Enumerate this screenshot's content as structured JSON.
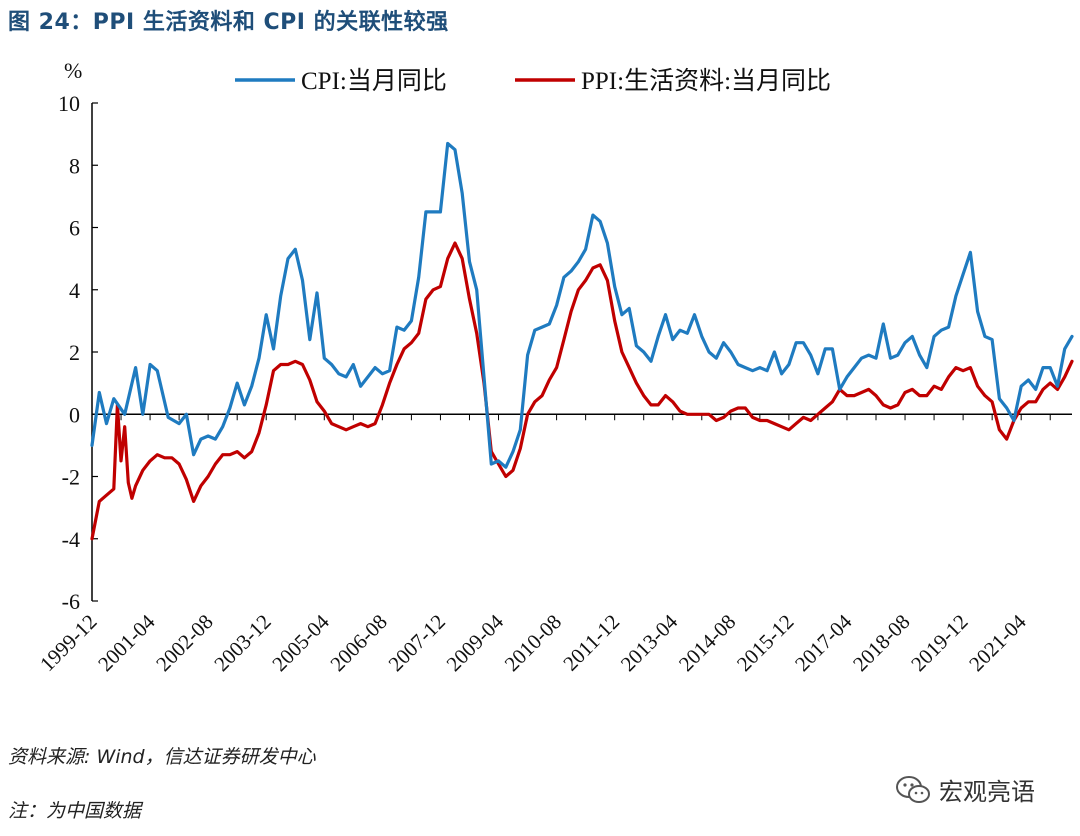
{
  "title": "图 24：PPI 生活资料和 CPI 的关联性较强",
  "source": "资料来源: Wind，信达证券研发中心",
  "note": "注：为中国数据",
  "watermark": "宏观亮语",
  "watermark_icon": "wechat-icon",
  "colors": {
    "cpi": "#1f7bc0",
    "ppi": "#c00000",
    "title": "#1f4e79"
  },
  "chart_data": {
    "type": "line",
    "y_unit_label": "%",
    "ylim": [
      -6,
      10
    ],
    "yticks": [
      10,
      8,
      6,
      4,
      2,
      0,
      -2,
      -4,
      -6
    ],
    "ytick_labels": [
      "10",
      "8",
      "6",
      "4",
      "2",
      "0",
      "-2",
      "-4",
      "-6"
    ],
    "xlim": [
      "1999-12",
      "2022-06"
    ],
    "xtick_labels": [
      "1999-12",
      "2001-04",
      "2002-08",
      "2003-12",
      "2005-04",
      "2006-08",
      "2007-12",
      "2009-04",
      "2010-08",
      "2011-12",
      "2013-04",
      "2014-08",
      "2015-12",
      "2017-04",
      "2018-08",
      "2019-12",
      "2021-04"
    ],
    "legend_position": "top",
    "grid": false,
    "series": [
      {
        "name": "CPI:当月同比",
        "color": "#1f7bc0",
        "points": [
          [
            "1999-12",
            -1.0
          ],
          [
            "2000-02",
            0.7
          ],
          [
            "2000-04",
            -0.3
          ],
          [
            "2000-06",
            0.5
          ],
          [
            "2000-09",
            0.0
          ],
          [
            "2000-12",
            1.5
          ],
          [
            "2001-02",
            0.0
          ],
          [
            "2001-04",
            1.6
          ],
          [
            "2001-06",
            1.4
          ],
          [
            "2001-09",
            -0.1
          ],
          [
            "2001-12",
            -0.3
          ],
          [
            "2002-02",
            0.0
          ],
          [
            "2002-04",
            -1.3
          ],
          [
            "2002-06",
            -0.8
          ],
          [
            "2002-08",
            -0.7
          ],
          [
            "2002-10",
            -0.8
          ],
          [
            "2002-12",
            -0.4
          ],
          [
            "2003-02",
            0.2
          ],
          [
            "2003-04",
            1.0
          ],
          [
            "2003-06",
            0.3
          ],
          [
            "2003-08",
            0.9
          ],
          [
            "2003-10",
            1.8
          ],
          [
            "2003-12",
            3.2
          ],
          [
            "2004-02",
            2.1
          ],
          [
            "2004-04",
            3.8
          ],
          [
            "2004-06",
            5.0
          ],
          [
            "2004-08",
            5.3
          ],
          [
            "2004-10",
            4.3
          ],
          [
            "2004-12",
            2.4
          ],
          [
            "2005-02",
            3.9
          ],
          [
            "2005-04",
            1.8
          ],
          [
            "2005-06",
            1.6
          ],
          [
            "2005-08",
            1.3
          ],
          [
            "2005-10",
            1.2
          ],
          [
            "2005-12",
            1.6
          ],
          [
            "2006-02",
            0.9
          ],
          [
            "2006-04",
            1.2
          ],
          [
            "2006-06",
            1.5
          ],
          [
            "2006-08",
            1.3
          ],
          [
            "2006-10",
            1.4
          ],
          [
            "2006-12",
            2.8
          ],
          [
            "2007-02",
            2.7
          ],
          [
            "2007-04",
            3.0
          ],
          [
            "2007-06",
            4.4
          ],
          [
            "2007-08",
            6.5
          ],
          [
            "2007-10",
            6.5
          ],
          [
            "2007-12",
            6.5
          ],
          [
            "2008-02",
            8.7
          ],
          [
            "2008-04",
            8.5
          ],
          [
            "2008-06",
            7.1
          ],
          [
            "2008-08",
            4.9
          ],
          [
            "2008-10",
            4.0
          ],
          [
            "2008-12",
            1.2
          ],
          [
            "2009-02",
            -1.6
          ],
          [
            "2009-04",
            -1.5
          ],
          [
            "2009-06",
            -1.7
          ],
          [
            "2009-08",
            -1.2
          ],
          [
            "2009-10",
            -0.5
          ],
          [
            "2009-12",
            1.9
          ],
          [
            "2010-02",
            2.7
          ],
          [
            "2010-04",
            2.8
          ],
          [
            "2010-06",
            2.9
          ],
          [
            "2010-08",
            3.5
          ],
          [
            "2010-10",
            4.4
          ],
          [
            "2010-12",
            4.6
          ],
          [
            "2011-02",
            4.9
          ],
          [
            "2011-04",
            5.3
          ],
          [
            "2011-06",
            6.4
          ],
          [
            "2011-08",
            6.2
          ],
          [
            "2011-10",
            5.5
          ],
          [
            "2011-12",
            4.1
          ],
          [
            "2012-02",
            3.2
          ],
          [
            "2012-04",
            3.4
          ],
          [
            "2012-06",
            2.2
          ],
          [
            "2012-08",
            2.0
          ],
          [
            "2012-10",
            1.7
          ],
          [
            "2012-12",
            2.5
          ],
          [
            "2013-02",
            3.2
          ],
          [
            "2013-04",
            2.4
          ],
          [
            "2013-06",
            2.7
          ],
          [
            "2013-08",
            2.6
          ],
          [
            "2013-10",
            3.2
          ],
          [
            "2013-12",
            2.5
          ],
          [
            "2014-02",
            2.0
          ],
          [
            "2014-04",
            1.8
          ],
          [
            "2014-06",
            2.3
          ],
          [
            "2014-08",
            2.0
          ],
          [
            "2014-10",
            1.6
          ],
          [
            "2014-12",
            1.5
          ],
          [
            "2015-02",
            1.4
          ],
          [
            "2015-04",
            1.5
          ],
          [
            "2015-06",
            1.4
          ],
          [
            "2015-08",
            2.0
          ],
          [
            "2015-10",
            1.3
          ],
          [
            "2015-12",
            1.6
          ],
          [
            "2016-02",
            2.3
          ],
          [
            "2016-04",
            2.3
          ],
          [
            "2016-06",
            1.9
          ],
          [
            "2016-08",
            1.3
          ],
          [
            "2016-10",
            2.1
          ],
          [
            "2016-12",
            2.1
          ],
          [
            "2017-02",
            0.8
          ],
          [
            "2017-04",
            1.2
          ],
          [
            "2017-06",
            1.5
          ],
          [
            "2017-08",
            1.8
          ],
          [
            "2017-10",
            1.9
          ],
          [
            "2017-12",
            1.8
          ],
          [
            "2018-02",
            2.9
          ],
          [
            "2018-04",
            1.8
          ],
          [
            "2018-06",
            1.9
          ],
          [
            "2018-08",
            2.3
          ],
          [
            "2018-10",
            2.5
          ],
          [
            "2018-12",
            1.9
          ],
          [
            "2019-02",
            1.5
          ],
          [
            "2019-04",
            2.5
          ],
          [
            "2019-06",
            2.7
          ],
          [
            "2019-08",
            2.8
          ],
          [
            "2019-10",
            3.8
          ],
          [
            "2019-12",
            4.5
          ],
          [
            "2020-02",
            5.2
          ],
          [
            "2020-04",
            3.3
          ],
          [
            "2020-06",
            2.5
          ],
          [
            "2020-08",
            2.4
          ],
          [
            "2020-10",
            0.5
          ],
          [
            "2020-12",
            0.2
          ],
          [
            "2021-02",
            -0.2
          ],
          [
            "2021-04",
            0.9
          ],
          [
            "2021-06",
            1.1
          ],
          [
            "2021-08",
            0.8
          ],
          [
            "2021-10",
            1.5
          ],
          [
            "2021-12",
            1.5
          ],
          [
            "2022-02",
            0.9
          ],
          [
            "2022-04",
            2.1
          ],
          [
            "2022-06",
            2.5
          ]
        ]
      },
      {
        "name": "PPI:生活资料:当月同比",
        "color": "#c00000",
        "points": [
          [
            "1999-12",
            -4.0
          ],
          [
            "2000-02",
            -2.8
          ],
          [
            "2000-04",
            -2.6
          ],
          [
            "2000-06",
            -2.4
          ],
          [
            "2000-07",
            0.3
          ],
          [
            "2000-08",
            -1.5
          ],
          [
            "2000-09",
            -0.4
          ],
          [
            "2000-10",
            -2.2
          ],
          [
            "2000-11",
            -2.7
          ],
          [
            "2000-12",
            -2.3
          ],
          [
            "2001-02",
            -1.8
          ],
          [
            "2001-04",
            -1.5
          ],
          [
            "2001-06",
            -1.3
          ],
          [
            "2001-08",
            -1.4
          ],
          [
            "2001-10",
            -1.4
          ],
          [
            "2001-12",
            -1.6
          ],
          [
            "2002-02",
            -2.1
          ],
          [
            "2002-04",
            -2.8
          ],
          [
            "2002-06",
            -2.3
          ],
          [
            "2002-08",
            -2.0
          ],
          [
            "2002-10",
            -1.6
          ],
          [
            "2002-12",
            -1.3
          ],
          [
            "2003-02",
            -1.3
          ],
          [
            "2003-04",
            -1.2
          ],
          [
            "2003-06",
            -1.4
          ],
          [
            "2003-08",
            -1.2
          ],
          [
            "2003-10",
            -0.6
          ],
          [
            "2003-12",
            0.3
          ],
          [
            "2004-02",
            1.4
          ],
          [
            "2004-04",
            1.6
          ],
          [
            "2004-06",
            1.6
          ],
          [
            "2004-08",
            1.7
          ],
          [
            "2004-10",
            1.6
          ],
          [
            "2004-12",
            1.1
          ],
          [
            "2005-02",
            0.4
          ],
          [
            "2005-04",
            0.1
          ],
          [
            "2005-06",
            -0.3
          ],
          [
            "2005-08",
            -0.4
          ],
          [
            "2005-10",
            -0.5
          ],
          [
            "2005-12",
            -0.4
          ],
          [
            "2006-02",
            -0.3
          ],
          [
            "2006-04",
            -0.4
          ],
          [
            "2006-06",
            -0.3
          ],
          [
            "2006-08",
            0.3
          ],
          [
            "2006-10",
            1.0
          ],
          [
            "2006-12",
            1.6
          ],
          [
            "2007-02",
            2.1
          ],
          [
            "2007-04",
            2.3
          ],
          [
            "2007-06",
            2.6
          ],
          [
            "2007-08",
            3.7
          ],
          [
            "2007-10",
            4.0
          ],
          [
            "2007-12",
            4.1
          ],
          [
            "2008-02",
            5.0
          ],
          [
            "2008-04",
            5.5
          ],
          [
            "2008-06",
            5.0
          ],
          [
            "2008-08",
            3.7
          ],
          [
            "2008-10",
            2.6
          ],
          [
            "2008-12",
            1.0
          ],
          [
            "2009-02",
            -1.2
          ],
          [
            "2009-04",
            -1.6
          ],
          [
            "2009-06",
            -2.0
          ],
          [
            "2009-08",
            -1.8
          ],
          [
            "2009-10",
            -1.1
          ],
          [
            "2009-12",
            0.0
          ],
          [
            "2010-02",
            0.4
          ],
          [
            "2010-04",
            0.6
          ],
          [
            "2010-06",
            1.1
          ],
          [
            "2010-08",
            1.5
          ],
          [
            "2010-10",
            2.4
          ],
          [
            "2010-12",
            3.3
          ],
          [
            "2011-02",
            4.0
          ],
          [
            "2011-04",
            4.3
          ],
          [
            "2011-06",
            4.7
          ],
          [
            "2011-08",
            4.8
          ],
          [
            "2011-10",
            4.3
          ],
          [
            "2011-12",
            3.0
          ],
          [
            "2012-02",
            2.0
          ],
          [
            "2012-04",
            1.5
          ],
          [
            "2012-06",
            1.0
          ],
          [
            "2012-08",
            0.6
          ],
          [
            "2012-10",
            0.3
          ],
          [
            "2012-12",
            0.3
          ],
          [
            "2013-02",
            0.6
          ],
          [
            "2013-04",
            0.4
          ],
          [
            "2013-06",
            0.1
          ],
          [
            "2013-08",
            0.0
          ],
          [
            "2013-10",
            0.0
          ],
          [
            "2013-12",
            0.0
          ],
          [
            "2014-02",
            0.0
          ],
          [
            "2014-04",
            -0.2
          ],
          [
            "2014-06",
            -0.1
          ],
          [
            "2014-08",
            0.1
          ],
          [
            "2014-10",
            0.2
          ],
          [
            "2014-12",
            0.2
          ],
          [
            "2015-02",
            -0.1
          ],
          [
            "2015-04",
            -0.2
          ],
          [
            "2015-06",
            -0.2
          ],
          [
            "2015-08",
            -0.3
          ],
          [
            "2015-10",
            -0.4
          ],
          [
            "2015-12",
            -0.5
          ],
          [
            "2016-02",
            -0.3
          ],
          [
            "2016-04",
            -0.1
          ],
          [
            "2016-06",
            -0.2
          ],
          [
            "2016-08",
            0.0
          ],
          [
            "2016-10",
            0.2
          ],
          [
            "2016-12",
            0.4
          ],
          [
            "2017-02",
            0.8
          ],
          [
            "2017-04",
            0.6
          ],
          [
            "2017-06",
            0.6
          ],
          [
            "2017-08",
            0.7
          ],
          [
            "2017-10",
            0.8
          ],
          [
            "2017-12",
            0.6
          ],
          [
            "2018-02",
            0.3
          ],
          [
            "2018-04",
            0.2
          ],
          [
            "2018-06",
            0.3
          ],
          [
            "2018-08",
            0.7
          ],
          [
            "2018-10",
            0.8
          ],
          [
            "2018-12",
            0.6
          ],
          [
            "2019-02",
            0.6
          ],
          [
            "2019-04",
            0.9
          ],
          [
            "2019-06",
            0.8
          ],
          [
            "2019-08",
            1.2
          ],
          [
            "2019-10",
            1.5
          ],
          [
            "2019-12",
            1.4
          ],
          [
            "2020-02",
            1.5
          ],
          [
            "2020-04",
            0.9
          ],
          [
            "2020-06",
            0.6
          ],
          [
            "2020-08",
            0.4
          ],
          [
            "2020-10",
            -0.5
          ],
          [
            "2020-12",
            -0.8
          ],
          [
            "2021-02",
            -0.2
          ],
          [
            "2021-04",
            0.2
          ],
          [
            "2021-06",
            0.4
          ],
          [
            "2021-08",
            0.4
          ],
          [
            "2021-10",
            0.8
          ],
          [
            "2021-12",
            1.0
          ],
          [
            "2022-02",
            0.8
          ],
          [
            "2022-04",
            1.2
          ],
          [
            "2022-06",
            1.7
          ]
        ]
      }
    ]
  }
}
